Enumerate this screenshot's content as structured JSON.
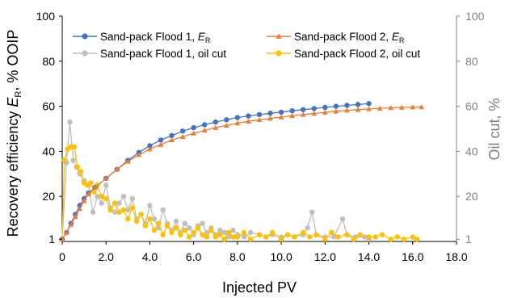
{
  "chart_data": {
    "type": "line",
    "title": "",
    "xlabel": "Injected PV",
    "ylabel_left": "Recovery efficiency E_R, % OOIP",
    "ylabel_left_parts": {
      "main": "Recovery efficiency ",
      "symbol": "E",
      "sub": "R",
      "tail": ", % OOIP"
    },
    "ylabel_right": "Oil cut, %",
    "xlim": [
      0,
      18
    ],
    "ylim_left": [
      0,
      100
    ],
    "ylim_right": [
      0,
      100
    ],
    "x_ticks": [
      "0",
      "2.0",
      "4.0",
      "6.0",
      "8.0",
      "10.0",
      "12.0",
      "14.0",
      "16.0",
      "18.0"
    ],
    "y_ticks_left": [
      "1",
      "20",
      "40",
      "60",
      "80",
      "100"
    ],
    "y_ticks_right": [
      "1",
      "20",
      "40",
      "60",
      "80",
      "100"
    ],
    "grid": false,
    "legend_position": "top",
    "legend": [
      {
        "text": "Sand-pack Flood 1, ",
        "symbol": "E",
        "sub": "R",
        "marker": "circle",
        "color": "#4472C4"
      },
      {
        "text": "Sand-pack Flood 2, ",
        "symbol": "E",
        "sub": "R",
        "marker": "triangle",
        "color": "#ED7D31"
      },
      {
        "text": "Sand-pack Flood 1, oil cut",
        "symbol": "",
        "sub": "",
        "marker": "circle",
        "color": "#BFBFBF"
      },
      {
        "text": "Sand-pack Flood 2, oil cut",
        "symbol": "",
        "sub": "",
        "marker": "circle",
        "color": "#FFC000"
      }
    ],
    "series": [
      {
        "name": "Sand-pack Flood 1, E_R",
        "axis": "left",
        "marker": "circle",
        "color": "#4472C4",
        "points": [
          [
            0,
            1
          ],
          [
            0.2,
            4
          ],
          [
            0.4,
            8
          ],
          [
            0.6,
            12
          ],
          [
            0.8,
            16
          ],
          [
            1.0,
            19
          ],
          [
            1.2,
            21.5
          ],
          [
            1.5,
            24
          ],
          [
            2.0,
            28
          ],
          [
            2.5,
            32
          ],
          [
            3.0,
            36
          ],
          [
            3.5,
            39.5
          ],
          [
            4.0,
            42.5
          ],
          [
            4.5,
            45
          ],
          [
            5.0,
            47
          ],
          [
            5.5,
            49
          ],
          [
            6.0,
            50.5
          ],
          [
            6.5,
            51.8
          ],
          [
            7.0,
            53
          ],
          [
            7.5,
            54
          ],
          [
            8.0,
            55
          ],
          [
            8.5,
            55.7
          ],
          [
            9.0,
            56.3
          ],
          [
            9.5,
            56.9
          ],
          [
            10.0,
            57.4
          ],
          [
            10.5,
            58
          ],
          [
            11.0,
            58.5
          ],
          [
            11.5,
            59
          ],
          [
            12.0,
            59.5
          ],
          [
            12.5,
            60
          ],
          [
            13.0,
            60.4
          ],
          [
            13.5,
            60.8
          ],
          [
            14.0,
            61.2
          ]
        ]
      },
      {
        "name": "Sand-pack Flood 2, E_R",
        "axis": "left",
        "marker": "triangle",
        "color": "#ED7D31",
        "points": [
          [
            0,
            1
          ],
          [
            0.2,
            4
          ],
          [
            0.4,
            7.5
          ],
          [
            0.6,
            11
          ],
          [
            0.8,
            14.5
          ],
          [
            1.0,
            18
          ],
          [
            1.2,
            21
          ],
          [
            1.5,
            24
          ],
          [
            2.0,
            28
          ],
          [
            2.5,
            32
          ],
          [
            3.0,
            35.5
          ],
          [
            3.5,
            38.5
          ],
          [
            4.0,
            41
          ],
          [
            4.5,
            43
          ],
          [
            5.0,
            45
          ],
          [
            5.5,
            46.5
          ],
          [
            6.0,
            48
          ],
          [
            6.5,
            49.3
          ],
          [
            7.0,
            50.5
          ],
          [
            7.5,
            51.5
          ],
          [
            8.0,
            52.5
          ],
          [
            8.5,
            53.3
          ],
          [
            9.0,
            54
          ],
          [
            9.5,
            54.6
          ],
          [
            10.0,
            55.2
          ],
          [
            10.5,
            55.8
          ],
          [
            11.0,
            56.3
          ],
          [
            11.5,
            56.8
          ],
          [
            12.0,
            57.3
          ],
          [
            12.5,
            57.8
          ],
          [
            13.0,
            58.2
          ],
          [
            13.5,
            58.5
          ],
          [
            14.0,
            58.8
          ],
          [
            14.5,
            59.1
          ],
          [
            15.0,
            59.3
          ],
          [
            15.5,
            59.5
          ],
          [
            16.0,
            59.6
          ],
          [
            16.4,
            59.7
          ]
        ]
      },
      {
        "name": "Sand-pack Flood 1, oil cut",
        "axis": "right",
        "marker": "circle",
        "color": "#BFBFBF",
        "points": [
          [
            0,
            1
          ],
          [
            0.2,
            35
          ],
          [
            0.35,
            53
          ],
          [
            0.5,
            36
          ],
          [
            0.65,
            33
          ],
          [
            0.8,
            30
          ],
          [
            1.0,
            27
          ],
          [
            1.2,
            25
          ],
          [
            1.4,
            13
          ],
          [
            1.6,
            20
          ],
          [
            1.8,
            17
          ],
          [
            2.0,
            25
          ],
          [
            2.2,
            15
          ],
          [
            2.4,
            13
          ],
          [
            2.6,
            17
          ],
          [
            2.8,
            20
          ],
          [
            3.0,
            14
          ],
          [
            3.2,
            19
          ],
          [
            3.4,
            10
          ],
          [
            3.6,
            12
          ],
          [
            3.8,
            8
          ],
          [
            4.0,
            16
          ],
          [
            4.2,
            10
          ],
          [
            4.4,
            6
          ],
          [
            4.6,
            14
          ],
          [
            4.8,
            8
          ],
          [
            5.0,
            5
          ],
          [
            5.2,
            9
          ],
          [
            5.4,
            4
          ],
          [
            5.6,
            8
          ],
          [
            5.8,
            6
          ],
          [
            6.0,
            3
          ],
          [
            6.2,
            7
          ],
          [
            6.4,
            8
          ],
          [
            6.6,
            4
          ],
          [
            6.8,
            6
          ],
          [
            7.0,
            3
          ],
          [
            7.2,
            5
          ],
          [
            7.4,
            4
          ],
          [
            7.6,
            2
          ],
          [
            7.8,
            5
          ],
          [
            8.0,
            3
          ],
          [
            8.3,
            2
          ],
          [
            8.6,
            4
          ],
          [
            9.0,
            3
          ],
          [
            9.3,
            2
          ],
          [
            9.6,
            3
          ],
          [
            10.0,
            2
          ],
          [
            10.3,
            3
          ],
          [
            10.6,
            2
          ],
          [
            11.0,
            3
          ],
          [
            11.2,
            6
          ],
          [
            11.4,
            13
          ],
          [
            11.6,
            3
          ],
          [
            12.0,
            2
          ],
          [
            12.4,
            2
          ],
          [
            12.8,
            10
          ],
          [
            13.0,
            3
          ],
          [
            13.4,
            2
          ],
          [
            13.8,
            2
          ],
          [
            14.0,
            1
          ]
        ]
      },
      {
        "name": "Sand-pack Flood 2, oil cut",
        "axis": "right",
        "marker": "circle",
        "color": "#FFC000",
        "points": [
          [
            0,
            1
          ],
          [
            0.1,
            36
          ],
          [
            0.25,
            41
          ],
          [
            0.4,
            42
          ],
          [
            0.55,
            42
          ],
          [
            0.7,
            33
          ],
          [
            0.85,
            31
          ],
          [
            1.0,
            26
          ],
          [
            1.15,
            25
          ],
          [
            1.3,
            26
          ],
          [
            1.45,
            22
          ],
          [
            1.6,
            25
          ],
          [
            1.8,
            20
          ],
          [
            2.0,
            19
          ],
          [
            2.2,
            14
          ],
          [
            2.4,
            17
          ],
          [
            2.6,
            13
          ],
          [
            2.8,
            14
          ],
          [
            3.0,
            10
          ],
          [
            3.2,
            15
          ],
          [
            3.4,
            9
          ],
          [
            3.6,
            12
          ],
          [
            3.8,
            7
          ],
          [
            4.0,
            10
          ],
          [
            4.2,
            5
          ],
          [
            4.4,
            8
          ],
          [
            4.6,
            3
          ],
          [
            4.8,
            7
          ],
          [
            5.0,
            4
          ],
          [
            5.2,
            6
          ],
          [
            5.4,
            3
          ],
          [
            5.6,
            5
          ],
          [
            5.8,
            2
          ],
          [
            6.0,
            4
          ],
          [
            6.2,
            6
          ],
          [
            6.4,
            3
          ],
          [
            6.6,
            2
          ],
          [
            6.8,
            5
          ],
          [
            7.0,
            2
          ],
          [
            7.2,
            3
          ],
          [
            7.4,
            1
          ],
          [
            7.6,
            4
          ],
          [
            7.8,
            2
          ],
          [
            8.0,
            2
          ],
          [
            8.3,
            4
          ],
          [
            8.6,
            1
          ],
          [
            9.0,
            3
          ],
          [
            9.3,
            2
          ],
          [
            9.6,
            4
          ],
          [
            10.0,
            1
          ],
          [
            10.3,
            3
          ],
          [
            10.6,
            2
          ],
          [
            11.0,
            4
          ],
          [
            11.3,
            2
          ],
          [
            11.6,
            3
          ],
          [
            12.0,
            1
          ],
          [
            12.3,
            4
          ],
          [
            12.6,
            2
          ],
          [
            13.0,
            3
          ],
          [
            13.3,
            1
          ],
          [
            13.6,
            3
          ],
          [
            14.0,
            2
          ],
          [
            14.3,
            2
          ],
          [
            14.6,
            3
          ],
          [
            15.0,
            1
          ],
          [
            15.3,
            2
          ],
          [
            15.6,
            1
          ],
          [
            16.0,
            2
          ],
          [
            16.2,
            1
          ]
        ]
      }
    ]
  }
}
